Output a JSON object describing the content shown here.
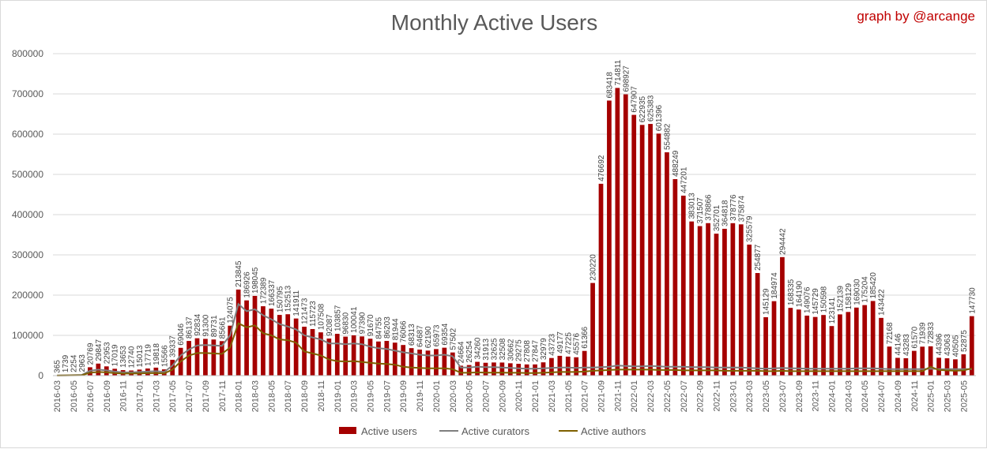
{
  "header": {
    "credit": "graph by @arcange"
  },
  "chart_data": {
    "type": "bar",
    "title": "Monthly Active Users",
    "ylim": [
      0,
      800000
    ],
    "yticks": [
      "0",
      "100000",
      "200000",
      "300000",
      "400000",
      "500000",
      "600000",
      "700000",
      "800000"
    ],
    "grid": true,
    "legend_position": "bottom",
    "categories": [
      "2016-03",
      "2016-04",
      "2016-05",
      "2016-06",
      "2016-07",
      "2016-08",
      "2016-09",
      "2016-10",
      "2016-11",
      "2016-12",
      "2017-01",
      "2017-02",
      "2017-03",
      "2017-04",
      "2017-05",
      "2017-06",
      "2017-07",
      "2017-08",
      "2017-09",
      "2017-10",
      "2017-11",
      "2017-12",
      "2018-01",
      "2018-02",
      "2018-03",
      "2018-04",
      "2018-05",
      "2018-06",
      "2018-07",
      "2018-08",
      "2018-09",
      "2018-10",
      "2018-11",
      "2018-12",
      "2019-01",
      "2019-02",
      "2019-03",
      "2019-04",
      "2019-05",
      "2019-06",
      "2019-07",
      "2019-08",
      "2019-09",
      "2019-10",
      "2019-11",
      "2019-12",
      "2020-01",
      "2020-02",
      "2020-03",
      "2020-04",
      "2020-05",
      "2020-06",
      "2020-07",
      "2020-08",
      "2020-09",
      "2020-10",
      "2020-11",
      "2020-12",
      "2021-01",
      "2021-02",
      "2021-03",
      "2021-04",
      "2021-05",
      "2021-06",
      "2021-07",
      "2021-08",
      "2021-09",
      "2021-10",
      "2021-11",
      "2021-12",
      "2022-01",
      "2022-02",
      "2022-03",
      "2022-04",
      "2022-05",
      "2022-06",
      "2022-07",
      "2022-08",
      "2022-09",
      "2022-10",
      "2022-11",
      "2022-12",
      "2023-01",
      "2023-02",
      "2023-03",
      "2023-04",
      "2023-05",
      "2023-06",
      "2023-07",
      "2023-08",
      "2023-09",
      "2023-10",
      "2023-11",
      "2023-12",
      "2024-01",
      "2024-02",
      "2024-03",
      "2024-04",
      "2024-05",
      "2024-06",
      "2024-07",
      "2024-08",
      "2024-09",
      "2024-10",
      "2024-11",
      "2024-12",
      "2025-01",
      "2025-02",
      "2025-03",
      "2025-04",
      "2025-05",
      "2025-06"
    ],
    "xtick_every": 2,
    "series": [
      {
        "name": "Active users",
        "type": "bar",
        "color": "#a50000",
        "values": [
          365,
          1739,
          2254,
          2963,
          20769,
          29847,
          22953,
          17019,
          13653,
          12740,
          15013,
          17719,
          19818,
          15566,
          39337,
          69046,
          86137,
          92834,
          91300,
          89731,
          85661,
          124075,
          213845,
          186926,
          198045,
          172389,
          166337,
          150795,
          152513,
          141911,
          121473,
          115723,
          107508,
          92087,
          103857,
          96830,
          100041,
          97390,
          91670,
          84755,
          86203,
          81944,
          76066,
          68313,
          64687,
          62190,
          65973,
          69354,
          57502,
          24664,
          26254,
          34260,
          31913,
          32625,
          32508,
          30662,
          29275,
          27808,
          27847,
          32979,
          43723,
          49177,
          47225,
          45576,
          61366,
          230220,
          476692,
          683418,
          714811,
          698927,
          647907,
          622935,
          625383,
          601396,
          554882,
          488249,
          447201,
          383013,
          371507,
          378866,
          352701,
          364818,
          378776,
          375874,
          325579,
          254877,
          145129,
          184974,
          294442,
          168335,
          164190,
          149076,
          145729,
          150598,
          123141,
          152139,
          158129,
          169030,
          175204,
          185420,
          143422,
          72168,
          44146,
          43283,
          61570,
          71939,
          72833,
          44396,
          43063,
          40505,
          52875,
          147730
        ]
      },
      {
        "name": "Active curators",
        "type": "line",
        "color": "#7f7f7f",
        "values": [
          300,
          800,
          1200,
          1800,
          12000,
          15000,
          13000,
          10000,
          8000,
          8000,
          9000,
          10000,
          11000,
          9000,
          25000,
          50000,
          65000,
          75000,
          76000,
          75000,
          74000,
          100000,
          178000,
          160000,
          165000,
          150000,
          140000,
          128000,
          122000,
          115000,
          100000,
          95000,
          90000,
          80000,
          80000,
          78000,
          80000,
          78000,
          72000,
          68000,
          66000,
          62000,
          58000,
          55000,
          52000,
          50000,
          50000,
          52000,
          48000,
          20000,
          20000,
          22000,
          21000,
          21000,
          20000,
          19000,
          18000,
          17000,
          17000,
          18000,
          19000,
          20000,
          20000,
          19000,
          20000,
          20000,
          21000,
          22000,
          25000,
          24000,
          23000,
          23000,
          24000,
          23000,
          22000,
          22000,
          22000,
          21000,
          21000,
          21000,
          20000,
          20000,
          20000,
          20000,
          19000,
          18000,
          17000,
          18000,
          19000,
          18000,
          18000,
          17000,
          17000,
          17000,
          17000,
          17000,
          17000,
          18000,
          18000,
          18000,
          17000,
          16000,
          16000,
          16000,
          16000,
          16000,
          17000,
          16000,
          16000,
          16000,
          16000,
          16000
        ]
      },
      {
        "name": "Active authors",
        "type": "line",
        "color": "#7f6000",
        "values": [
          200,
          500,
          700,
          1000,
          7000,
          9000,
          8000,
          6000,
          5000,
          5000,
          5500,
          6000,
          6500,
          5500,
          15000,
          35000,
          50000,
          56000,
          56000,
          55000,
          54000,
          70000,
          130000,
          120000,
          125000,
          105000,
          100000,
          90000,
          88000,
          82000,
          60000,
          55000,
          50000,
          40000,
          36000,
          35000,
          36000,
          34000,
          32000,
          30000,
          29000,
          27000,
          22000,
          20000,
          19000,
          18000,
          18000,
          18000,
          16000,
          7000,
          7000,
          8000,
          7500,
          7500,
          7500,
          7000,
          7000,
          6500,
          6500,
          7000,
          8000,
          9000,
          9000,
          9000,
          10000,
          12000,
          13000,
          14000,
          15000,
          15000,
          15000,
          15000,
          15000,
          14000,
          14000,
          14000,
          13000,
          13000,
          13000,
          13000,
          13000,
          12000,
          12000,
          12000,
          12000,
          12000,
          11000,
          11000,
          12000,
          11000,
          11000,
          11000,
          11000,
          11000,
          11000,
          11000,
          11000,
          11000,
          11000,
          11000,
          11000,
          11000,
          11000,
          11000,
          11000,
          11000,
          22000,
          14000,
          13000,
          12000,
          13000,
          18000
        ]
      }
    ]
  }
}
